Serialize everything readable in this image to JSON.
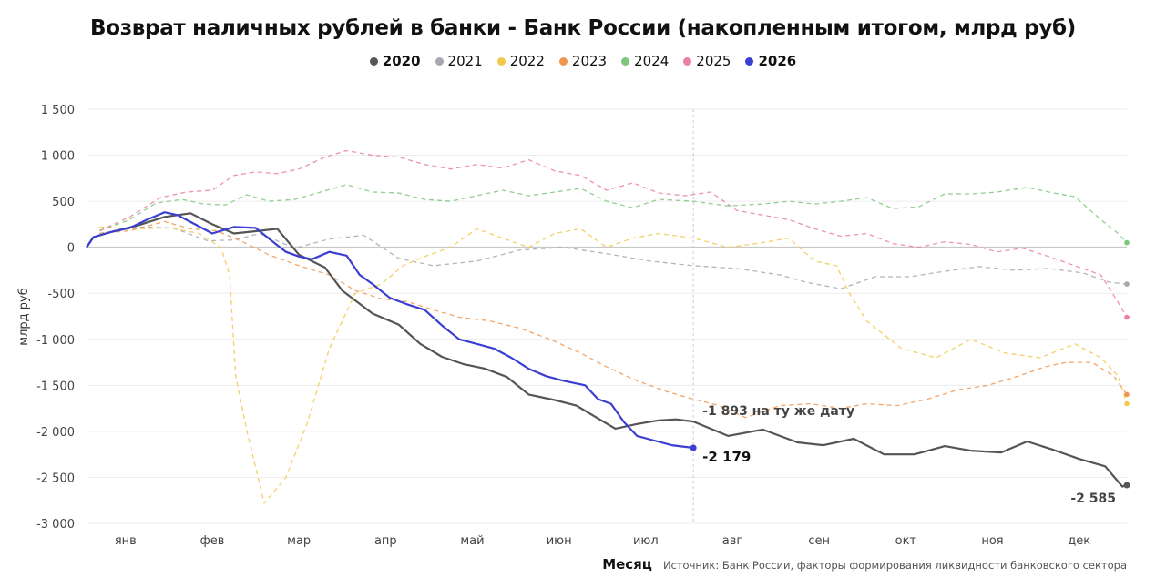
{
  "chart_data": {
    "type": "line",
    "title": "Возврат наличных рублей в банки - Банк России (накопленным итогом, млрд руб)",
    "xlabel": "Месяц",
    "ylabel": "млрд руб",
    "ylim": [
      -3000,
      1500
    ],
    "yticks": [
      1500,
      1000,
      500,
      0,
      -500,
      -1000,
      -1500,
      -2000,
      -2500,
      -3000
    ],
    "ytick_labels": [
      "1 500",
      "1 000",
      "500",
      "0",
      "-500",
      "-1 000",
      "-1 500",
      "-2 000",
      "-2 500",
      "-3 000"
    ],
    "xlim": [
      0,
      12
    ],
    "months": [
      "янв",
      "фев",
      "мар",
      "апр",
      "май",
      "июн",
      "июл",
      "авг",
      "сен",
      "окт",
      "ноя",
      "дек"
    ],
    "legend_position": "top-center",
    "grid": true,
    "marker_month": 7,
    "source": "Источник: Банк России, факторы формирования ликвидности банковского сектора",
    "annotations": [
      {
        "text": "-1 893 на ту же дату",
        "series": "2020",
        "x": 7.0,
        "y": -1893
      },
      {
        "text": "-2 179",
        "series": "2026",
        "x": 7.0,
        "y": -2179
      },
      {
        "text": "-2 585",
        "series": "2020",
        "x": 12.0,
        "y": -2585
      }
    ],
    "series": [
      {
        "name": "2020",
        "color": "#555555",
        "dashed": false,
        "bold": true,
        "x": [
          0,
          0.08,
          0.3,
          0.6,
          0.9,
          1.2,
          1.45,
          1.7,
          2.0,
          2.2,
          2.45,
          2.75,
          2.95,
          3.3,
          3.6,
          3.85,
          4.1,
          4.35,
          4.6,
          4.85,
          5.1,
          5.4,
          5.65,
          5.9,
          6.1,
          6.35,
          6.6,
          6.8,
          7.0,
          7.4,
          7.8,
          8.2,
          8.5,
          8.85,
          9.2,
          9.55,
          9.9,
          10.2,
          10.55,
          10.85,
          11.15,
          11.45,
          11.75,
          11.95,
          12.0
        ],
        "y": [
          0,
          110,
          170,
          240,
          330,
          370,
          250,
          150,
          180,
          200,
          -80,
          -220,
          -470,
          -720,
          -840,
          -1050,
          -1190,
          -1270,
          -1320,
          -1410,
          -1600,
          -1660,
          -1720,
          -1860,
          -1970,
          -1920,
          -1880,
          -1870,
          -1893,
          -2050,
          -1980,
          -2120,
          -2150,
          -2080,
          -2250,
          -2250,
          -2160,
          -2210,
          -2230,
          -2110,
          -2200,
          -2300,
          -2380,
          -2600,
          -2585
        ]
      },
      {
        "name": "2021",
        "color": "#a7a7b0",
        "dashed": true,
        "bold": false,
        "x": [
          0.15,
          0.6,
          1.0,
          1.4,
          1.7,
          2.0,
          2.4,
          2.8,
          3.2,
          3.6,
          4.0,
          4.5,
          5.0,
          5.5,
          6.0,
          6.5,
          7.0,
          7.5,
          8.0,
          8.3,
          8.7,
          9.1,
          9.5,
          9.9,
          10.3,
          10.7,
          11.1,
          11.5,
          11.8,
          12.0
        ],
        "y": [
          150,
          220,
          210,
          70,
          80,
          150,
          -10,
          90,
          130,
          -120,
          -200,
          -150,
          -30,
          0,
          -70,
          -150,
          -200,
          -230,
          -300,
          -380,
          -450,
          -320,
          -320,
          -260,
          -210,
          -250,
          -230,
          -280,
          -380,
          -400
        ]
      },
      {
        "name": "2022",
        "color": "#f2c84b",
        "dashed": true,
        "bold": false,
        "x": [
          0.15,
          0.55,
          0.95,
          1.3,
          1.55,
          1.65,
          1.72,
          1.85,
          2.05,
          2.3,
          2.55,
          2.8,
          3.1,
          3.4,
          3.65,
          3.9,
          4.2,
          4.5,
          4.8,
          5.1,
          5.4,
          5.7,
          6.0,
          6.3,
          6.6,
          7.0,
          7.4,
          7.8,
          8.1,
          8.4,
          8.65,
          8.8,
          9.0,
          9.4,
          9.8,
          10.2,
          10.6,
          11.0,
          11.4,
          11.7,
          11.9,
          12.0
        ],
        "y": [
          220,
          200,
          210,
          150,
          0,
          -300,
          -1400,
          -2000,
          -2780,
          -2500,
          -1900,
          -1100,
          -500,
          -400,
          -200,
          -100,
          0,
          200,
          100,
          0,
          150,
          200,
          0,
          100,
          150,
          100,
          0,
          50,
          100,
          -150,
          -200,
          -500,
          -800,
          -1100,
          -1200,
          -1000,
          -1150,
          -1200,
          -1050,
          -1200,
          -1400,
          -1700
        ]
      },
      {
        "name": "2023",
        "color": "#f0954f",
        "dashed": true,
        "bold": false,
        "x": [
          0.15,
          0.5,
          0.9,
          1.2,
          1.5,
          1.8,
          2.1,
          2.45,
          2.8,
          3.1,
          3.4,
          3.7,
          4.0,
          4.3,
          4.65,
          5.0,
          5.35,
          5.7,
          6.0,
          6.35,
          6.7,
          7.0,
          7.3,
          7.6,
          8.0,
          8.35,
          8.7,
          9.0,
          9.35,
          9.7,
          10.05,
          10.4,
          10.75,
          11.05,
          11.3,
          11.6,
          11.85,
          12.0
        ],
        "y": [
          150,
          180,
          280,
          200,
          180,
          60,
          -80,
          -200,
          -300,
          -470,
          -560,
          -590,
          -680,
          -760,
          -800,
          -880,
          -1000,
          -1150,
          -1300,
          -1450,
          -1570,
          -1650,
          -1720,
          -1850,
          -1720,
          -1700,
          -1750,
          -1700,
          -1720,
          -1650,
          -1550,
          -1500,
          -1400,
          -1300,
          -1250,
          -1250,
          -1400,
          -1600
        ]
      },
      {
        "name": "2024",
        "color": "#7cc77c",
        "dashed": true,
        "bold": false,
        "x": [
          0.15,
          0.5,
          0.8,
          1.1,
          1.35,
          1.6,
          1.85,
          2.1,
          2.4,
          2.7,
          3.0,
          3.3,
          3.6,
          3.9,
          4.2,
          4.5,
          4.8,
          5.1,
          5.4,
          5.7,
          6.0,
          6.3,
          6.6,
          7.0,
          7.4,
          7.8,
          8.1,
          8.4,
          8.7,
          9.0,
          9.3,
          9.6,
          9.9,
          10.2,
          10.5,
          10.85,
          11.1,
          11.4,
          11.7,
          11.9,
          12.0
        ],
        "y": [
          180,
          300,
          480,
          520,
          470,
          460,
          570,
          500,
          520,
          600,
          680,
          600,
          590,
          520,
          500,
          560,
          620,
          560,
          600,
          640,
          500,
          430,
          520,
          500,
          450,
          470,
          500,
          470,
          500,
          540,
          420,
          440,
          580,
          580,
          600,
          650,
          600,
          550,
          300,
          150,
          50
        ]
      },
      {
        "name": "2025",
        "color": "#ea7fa7",
        "dashed": true,
        "bold": false,
        "x": [
          0.15,
          0.5,
          0.85,
          1.15,
          1.45,
          1.7,
          1.95,
          2.2,
          2.45,
          2.75,
          3.0,
          3.3,
          3.6,
          3.9,
          4.2,
          4.5,
          4.8,
          5.1,
          5.4,
          5.7,
          6.0,
          6.3,
          6.6,
          6.9,
          7.2,
          7.5,
          7.8,
          8.1,
          8.4,
          8.7,
          9.0,
          9.3,
          9.6,
          9.9,
          10.2,
          10.5,
          10.8,
          11.1,
          11.4,
          11.7,
          11.9,
          12.0
        ],
        "y": [
          180,
          330,
          540,
          600,
          620,
          780,
          820,
          800,
          850,
          980,
          1050,
          1000,
          980,
          900,
          850,
          900,
          860,
          950,
          830,
          780,
          620,
          700,
          590,
          560,
          600,
          400,
          350,
          300,
          200,
          120,
          150,
          40,
          0,
          60,
          30,
          -50,
          -10,
          -100,
          -200,
          -300,
          -600,
          -760
        ]
      },
      {
        "name": "2026",
        "color": "#3b3fd1",
        "dashed": false,
        "bold": true,
        "x": [
          0,
          0.08,
          0.3,
          0.5,
          0.7,
          0.9,
          1.05,
          1.25,
          1.45,
          1.7,
          1.95,
          2.15,
          2.3,
          2.45,
          2.6,
          2.8,
          3.0,
          3.15,
          3.3,
          3.5,
          3.7,
          3.9,
          4.1,
          4.3,
          4.5,
          4.7,
          4.9,
          5.1,
          5.3,
          5.5,
          5.75,
          5.9,
          6.05,
          6.2,
          6.35,
          6.55,
          6.75,
          7.0
        ],
        "y": [
          0,
          110,
          170,
          210,
          300,
          380,
          350,
          250,
          150,
          220,
          210,
          60,
          -50,
          -100,
          -130,
          -50,
          -90,
          -300,
          -400,
          -550,
          -620,
          -680,
          -850,
          -1000,
          -1050,
          -1100,
          -1200,
          -1320,
          -1400,
          -1450,
          -1500,
          -1650,
          -1700,
          -1900,
          -2050,
          -2100,
          -2150,
          -2179
        ]
      }
    ]
  }
}
